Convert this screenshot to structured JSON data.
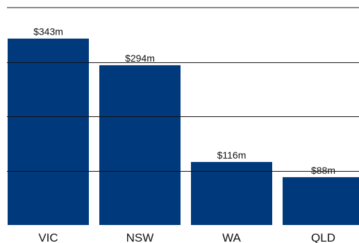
{
  "chart_data": {
    "type": "bar",
    "categories": [
      "VIC",
      "NSW",
      "WA",
      "QLD"
    ],
    "values": [
      343,
      294,
      116,
      88
    ],
    "data_labels": [
      "$343m",
      "$294m",
      "$116m",
      "$88m"
    ],
    "title": "",
    "xlabel": "",
    "ylabel": "",
    "ylim": [
      0,
      400
    ],
    "gridlines": [
      100,
      200,
      300
    ],
    "grid": true,
    "legend": "none"
  },
  "colors": {
    "bar": "#013a7c",
    "gridline": "#111111",
    "text": "#111111",
    "background": "#ffffff"
  }
}
